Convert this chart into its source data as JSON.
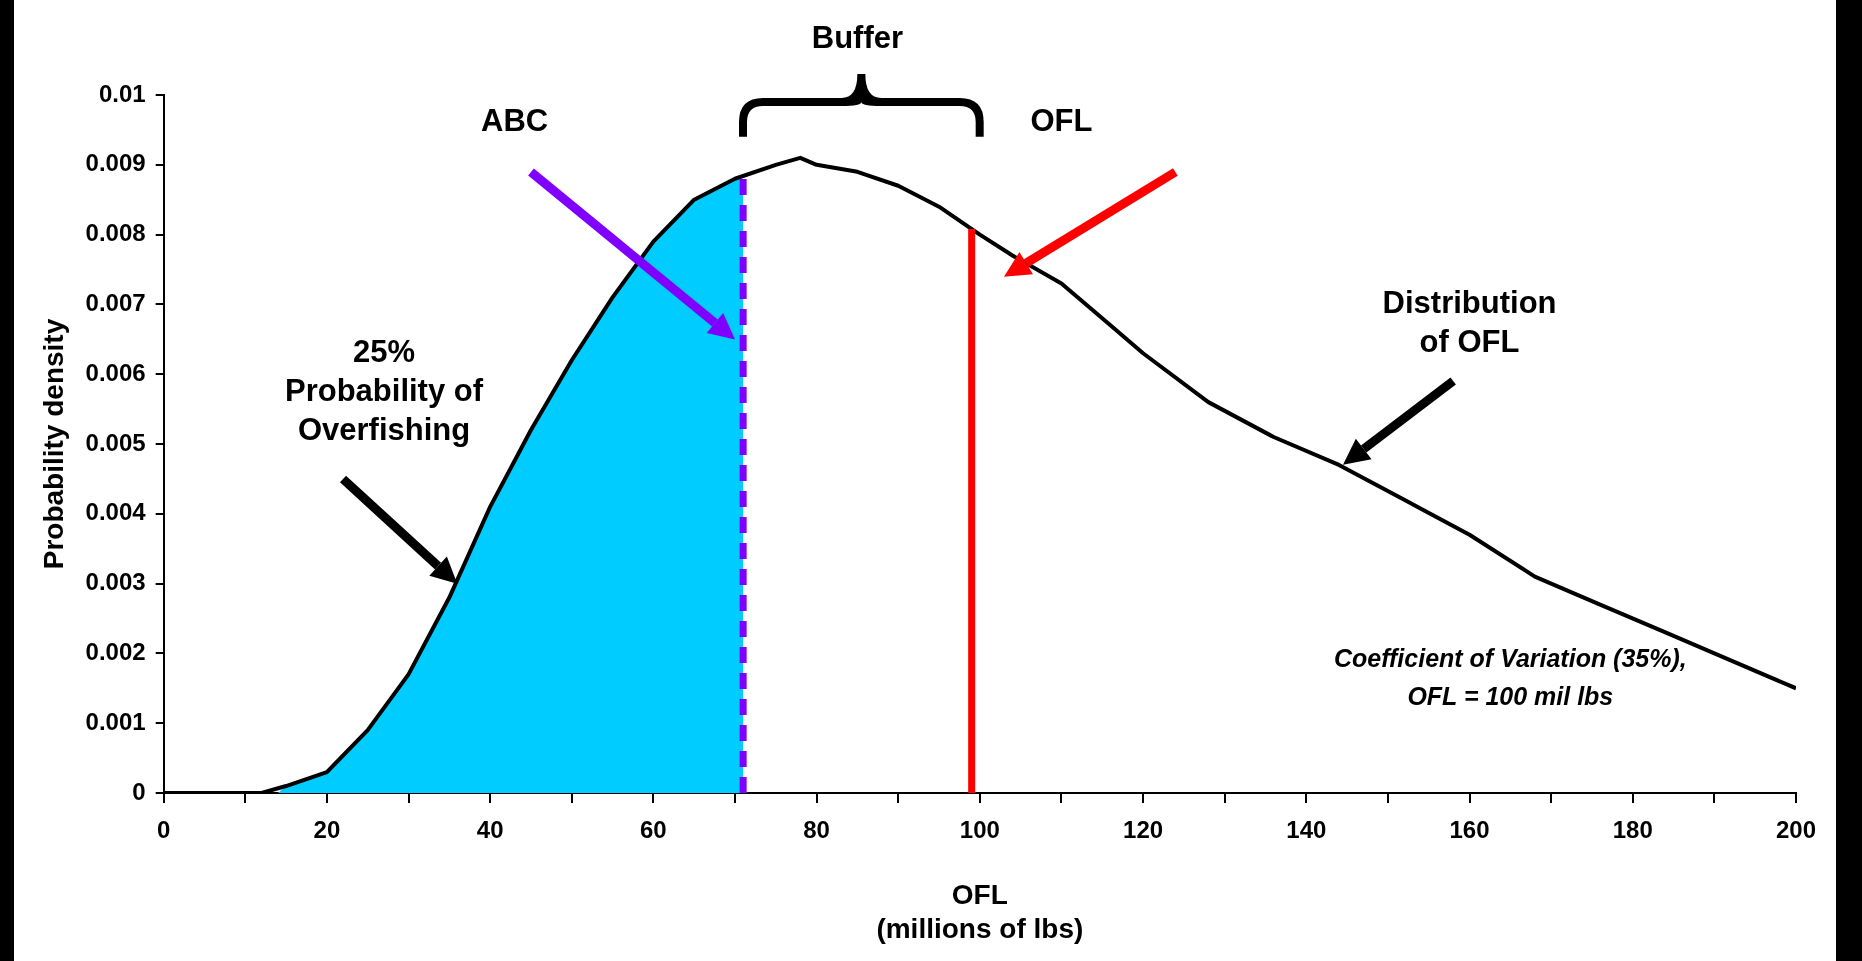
{
  "chart_data": {
    "type": "line",
    "xlabel": "OFL\n(millions of lbs)",
    "ylabel": "Probability density",
    "xlim": [
      0,
      200
    ],
    "xticks": [
      0,
      {
        "value": 10,
        "label": null
      },
      20,
      {
        "value": 30,
        "label": null
      },
      40,
      {
        "value": 50,
        "label": null
      },
      60,
      {
        "value": 70,
        "label": null
      },
      80,
      {
        "value": 90,
        "label": null
      },
      100,
      {
        "value": 110,
        "label": null
      },
      120,
      {
        "value": 130,
        "label": null
      },
      140,
      {
        "value": 150,
        "label": null
      },
      160,
      {
        "value": 170,
        "label": null
      },
      180,
      {
        "value": 190,
        "label": null
      },
      200
    ],
    "ylim": [
      0,
      0.01
    ],
    "yticks": [
      0,
      0.001,
      0.002,
      0.003,
      0.004,
      0.005,
      0.006,
      0.007,
      0.008,
      0.009,
      0.01
    ],
    "grid": false,
    "legend": false,
    "marker": "none",
    "series": [
      {
        "type": "area",
        "color": "#00ccff",
        "x": [
          14,
          15,
          20,
          25,
          30,
          35,
          40,
          45,
          50,
          55,
          60,
          65,
          70,
          71
        ],
        "values": [
          0,
          0.0001,
          0.0003,
          0.0009,
          0.0017,
          0.0028,
          0.0041,
          0.0052,
          0.0062,
          0.0071,
          0.0079,
          0.0085,
          0.0088,
          0.0088
        ]
      },
      {
        "type": "line",
        "color": "#000000",
        "line_style": "solid",
        "x": [
          0,
          5,
          10,
          12,
          15,
          20,
          25,
          30,
          35,
          40,
          45,
          50,
          55,
          60,
          65,
          70,
          75,
          78,
          80,
          85,
          90,
          95,
          100,
          104,
          110,
          116,
          120,
          128,
          136,
          144,
          152,
          160,
          168,
          176,
          184,
          192,
          200
        ],
        "values": [
          0,
          0,
          0,
          0,
          0.0001,
          0.0003,
          0.0009,
          0.0017,
          0.0028,
          0.0041,
          0.0052,
          0.0062,
          0.0071,
          0.0079,
          0.0085,
          0.0088,
          0.009,
          0.0091,
          0.009,
          0.0089,
          0.0087,
          0.0084,
          0.008,
          0.0077,
          0.0073,
          0.0067,
          0.0063,
          0.0056,
          0.0051,
          0.0047,
          0.0042,
          0.0037,
          0.0031,
          0.0027,
          0.0023,
          0.0019,
          0.0015
        ]
      }
    ],
    "ref_lines": [
      {
        "axis": "x",
        "value": 71,
        "color": "#8000ff",
        "line_style": "dashed"
      },
      {
        "axis": "x",
        "value": 99,
        "color": "#ff0000",
        "line_style": "solid"
      }
    ],
    "annotations": [
      "Buffer",
      "ABC",
      "OFL",
      "Distribution\nof OFL",
      "25%\nProbability of\nOverfishing",
      "Coefficient of Variation (35%),\nOFL = 100 mil lbs"
    ]
  }
}
